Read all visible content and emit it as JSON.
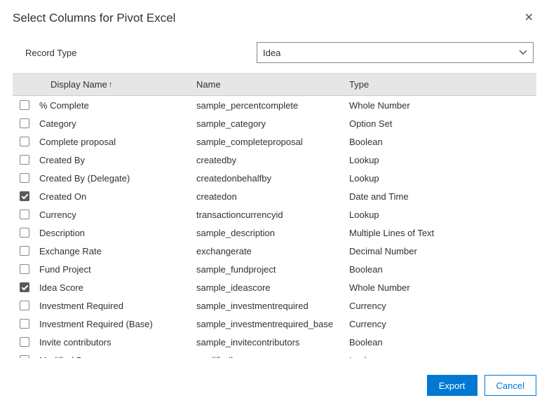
{
  "dialog": {
    "title": "Select Columns for Pivot Excel"
  },
  "recordType": {
    "label": "Record Type",
    "value": "Idea"
  },
  "grid": {
    "headers": {
      "displayName": "Display Name",
      "sortIndicator": "↑",
      "name": "Name",
      "type": "Type"
    },
    "rows": [
      {
        "checked": false,
        "displayName": "% Complete",
        "name": "sample_percentcomplete",
        "type": "Whole Number"
      },
      {
        "checked": false,
        "displayName": "Category",
        "name": "sample_category",
        "type": "Option Set"
      },
      {
        "checked": false,
        "displayName": "Complete proposal",
        "name": "sample_completeproposal",
        "type": "Boolean"
      },
      {
        "checked": false,
        "displayName": "Created By",
        "name": "createdby",
        "type": "Lookup"
      },
      {
        "checked": false,
        "displayName": "Created By (Delegate)",
        "name": "createdonbehalfby",
        "type": "Lookup"
      },
      {
        "checked": true,
        "displayName": "Created On",
        "name": "createdon",
        "type": "Date and Time"
      },
      {
        "checked": false,
        "displayName": "Currency",
        "name": "transactioncurrencyid",
        "type": "Lookup"
      },
      {
        "checked": false,
        "displayName": "Description",
        "name": "sample_description",
        "type": "Multiple Lines of Text"
      },
      {
        "checked": false,
        "displayName": "Exchange Rate",
        "name": "exchangerate",
        "type": "Decimal Number"
      },
      {
        "checked": false,
        "displayName": "Fund Project",
        "name": "sample_fundproject",
        "type": "Boolean"
      },
      {
        "checked": true,
        "displayName": "Idea Score",
        "name": "sample_ideascore",
        "type": "Whole Number"
      },
      {
        "checked": false,
        "displayName": "Investment Required",
        "name": "sample_investmentrequired",
        "type": "Currency"
      },
      {
        "checked": false,
        "displayName": "Investment Required (Base)",
        "name": "sample_investmentrequired_base",
        "type": "Currency"
      },
      {
        "checked": false,
        "displayName": "Invite contributors",
        "name": "sample_invitecontributors",
        "type": "Boolean"
      },
      {
        "checked": false,
        "displayName": "Modified By",
        "name": "modifiedby",
        "type": "Lookup"
      }
    ]
  },
  "footer": {
    "exportLabel": "Export",
    "cancelLabel": "Cancel"
  }
}
